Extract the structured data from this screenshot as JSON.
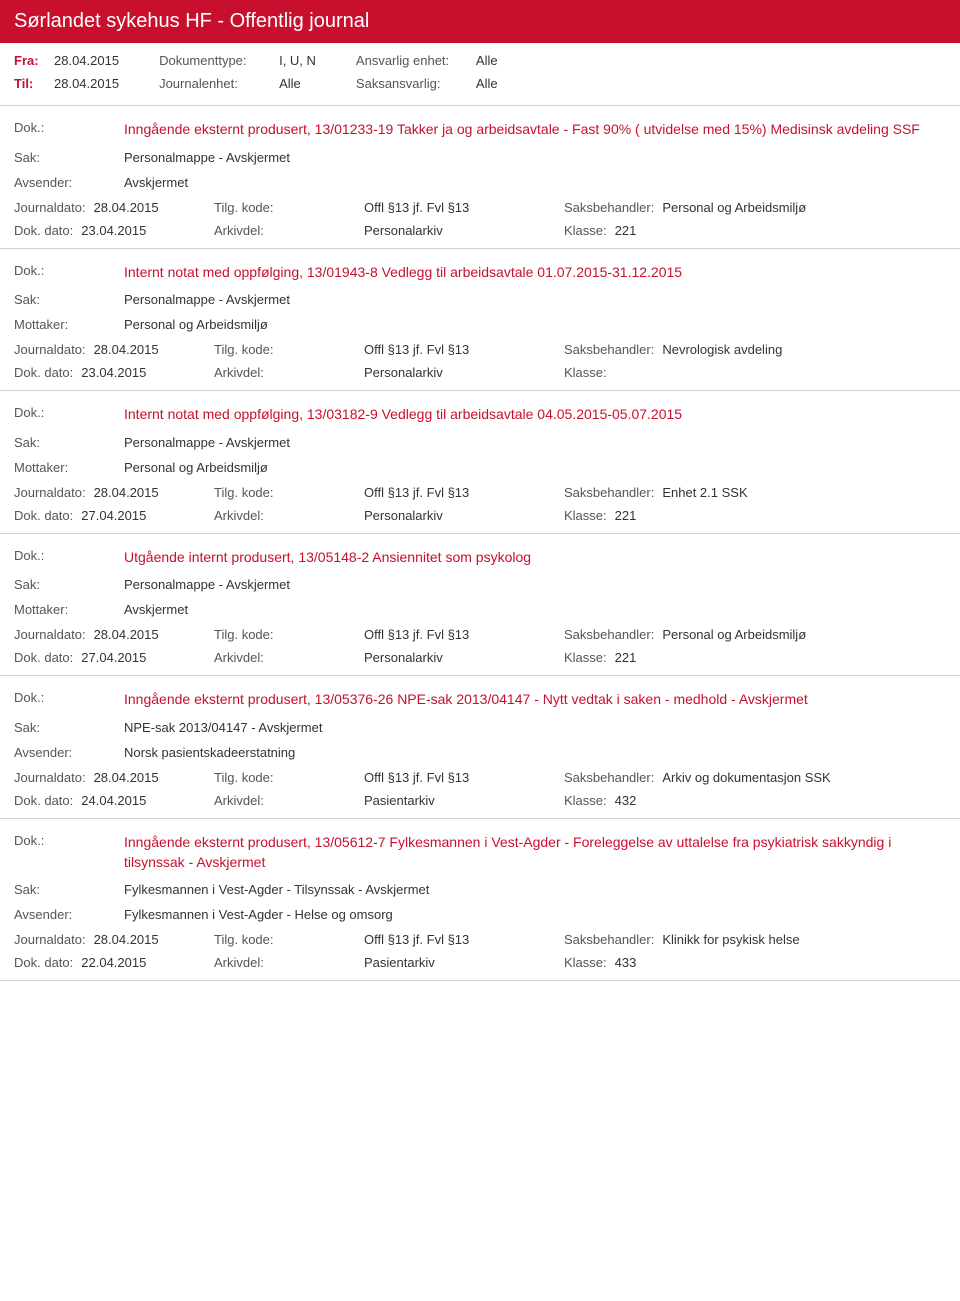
{
  "header": {
    "title": "Sørlandet sykehus HF - Offentlig journal"
  },
  "filters": {
    "fra_label": "Fra:",
    "fra_value": "28.04.2015",
    "til_label": "Til:",
    "til_value": "28.04.2015",
    "dokumenttype_label": "Dokumenttype:",
    "dokumenttype_value": "I, U, N",
    "journalenhet_label": "Journalenhet:",
    "journalenhet_value": "Alle",
    "ansvarlig_label": "Ansvarlig enhet:",
    "ansvarlig_value": "Alle",
    "saksansvarlig_label": "Saksansvarlig:",
    "saksansvarlig_value": "Alle"
  },
  "labels": {
    "dok": "Dok.:",
    "sak": "Sak:",
    "avsender": "Avsender:",
    "mottaker": "Mottaker:",
    "journaldato": "Journaldato:",
    "dokdato": "Dok. dato:",
    "tilgkode": "Tilg. kode:",
    "arkivdel": "Arkivdel:",
    "saksbehandler": "Saksbehandler:",
    "klasse": "Klasse:"
  },
  "entries": [
    {
      "title": "Inngående eksternt produsert, 13/01233-19 Takker ja og arbeidsavtale - Fast 90% ( utvidelse med 15%) Medisinsk avdeling SSF",
      "sak": "Personalmappe - Avskjermet",
      "party_label": "Avsender:",
      "party": "Avskjermet",
      "journaldato": "28.04.2015",
      "tilgkode": "Offl §13 jf. Fvl §13",
      "saksbehandler": "Personal og Arbeidsmiljø",
      "dokdato": "23.04.2015",
      "arkivdel": "Personalarkiv",
      "klasse": "221"
    },
    {
      "title": "Internt notat med oppfølging, 13/01943-8 Vedlegg til arbeidsavtale 01.07.2015-31.12.2015",
      "sak": "Personalmappe - Avskjermet",
      "party_label": "Mottaker:",
      "party": "Personal og Arbeidsmiljø",
      "journaldato": "28.04.2015",
      "tilgkode": "Offl §13 jf. Fvl §13",
      "saksbehandler": "Nevrologisk avdeling",
      "dokdato": "23.04.2015",
      "arkivdel": "Personalarkiv",
      "klasse": ""
    },
    {
      "title": "Internt notat med oppfølging, 13/03182-9 Vedlegg til arbeidsavtale 04.05.2015-05.07.2015",
      "sak": "Personalmappe - Avskjermet",
      "party_label": "Mottaker:",
      "party": "Personal og Arbeidsmiljø",
      "journaldato": "28.04.2015",
      "tilgkode": "Offl §13 jf. Fvl §13",
      "saksbehandler": "Enhet 2.1 SSK",
      "dokdato": "27.04.2015",
      "arkivdel": "Personalarkiv",
      "klasse": "221"
    },
    {
      "title": "Utgående internt produsert, 13/05148-2 Ansiennitet som psykolog",
      "sak": "Personalmappe - Avskjermet",
      "party_label": "Mottaker:",
      "party": "Avskjermet",
      "journaldato": "28.04.2015",
      "tilgkode": "Offl §13 jf. Fvl §13",
      "saksbehandler": "Personal og Arbeidsmiljø",
      "dokdato": "27.04.2015",
      "arkivdel": "Personalarkiv",
      "klasse": "221"
    },
    {
      "title": "Inngående eksternt produsert, 13/05376-26 NPE-sak 2013/04147 - Nytt vedtak i saken - medhold - Avskjermet",
      "sak": "NPE-sak 2013/04147 - Avskjermet",
      "party_label": "Avsender:",
      "party": "Norsk pasientskadeerstatning",
      "journaldato": "28.04.2015",
      "tilgkode": "Offl §13 jf. Fvl §13",
      "saksbehandler": "Arkiv og dokumentasjon SSK",
      "dokdato": "24.04.2015",
      "arkivdel": "Pasientarkiv",
      "klasse": "432"
    },
    {
      "title": "Inngående eksternt produsert, 13/05612-7 Fylkesmannen i Vest-Agder - Foreleggelse av uttalelse fra psykiatrisk sakkyndig i tilsynssak - Avskjermet",
      "sak": "Fylkesmannen i Vest-Agder - Tilsynssak - Avskjermet",
      "party_label": "Avsender:",
      "party": "Fylkesmannen i Vest-Agder - Helse og omsorg",
      "journaldato": "28.04.2015",
      "tilgkode": "Offl §13 jf. Fvl §13",
      "saksbehandler": "Klinikk for psykisk helse",
      "dokdato": "22.04.2015",
      "arkivdel": "Pasientarkiv",
      "klasse": "433"
    }
  ]
}
